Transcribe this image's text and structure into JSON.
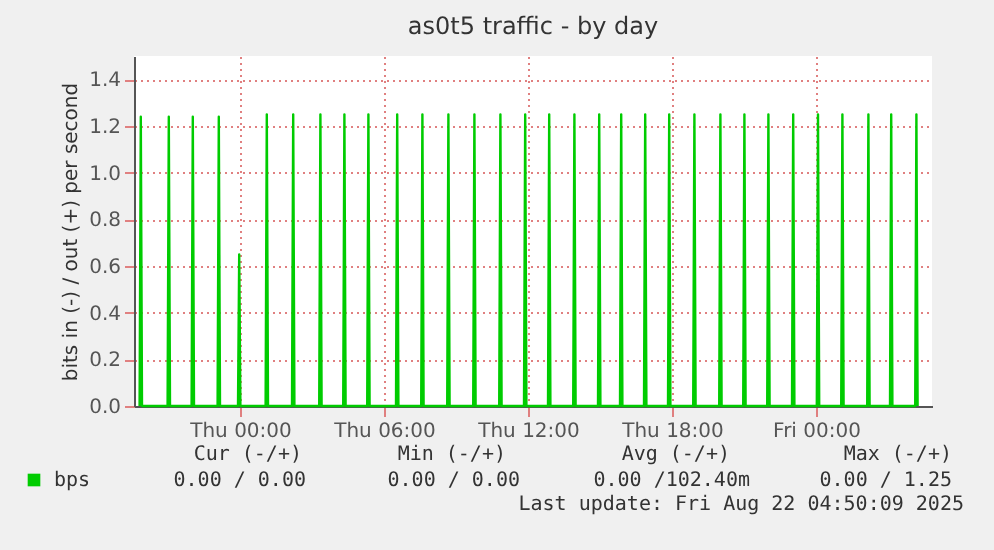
{
  "chart_data": {
    "type": "line",
    "title": "as0t5 traffic - by day",
    "ylabel": "bits in (-) / out (+) per second",
    "xlim": [
      "2025-08-20T19:35",
      "2025-08-22T04:50"
    ],
    "ylim": [
      0,
      1.5
    ],
    "xticks": [
      {
        "value": "2025-08-21T00:00",
        "label": "Thu 00:00"
      },
      {
        "value": "2025-08-21T06:00",
        "label": "Thu 06:00"
      },
      {
        "value": "2025-08-21T12:00",
        "label": "Thu 12:00"
      },
      {
        "value": "2025-08-21T18:00",
        "label": "Thu 18:00"
      },
      {
        "value": "2025-08-22T00:00",
        "label": "Fri 00:00"
      }
    ],
    "yticks": [
      {
        "value": 0,
        "label": "0.0"
      },
      {
        "value": 0.2,
        "label": "0.2"
      },
      {
        "value": 0.4,
        "label": "0.4"
      },
      {
        "value": 0.6,
        "label": "0.6"
      },
      {
        "value": 0.8,
        "label": "0.8"
      },
      {
        "value": 1.0,
        "label": "1.0"
      },
      {
        "value": 1.2,
        "label": "1.2"
      },
      {
        "value": 1.4,
        "label": "1.4"
      }
    ],
    "grid": true,
    "legend": "bottom left",
    "line_style": "solid",
    "marker": "none",
    "annotations": [
      "Cur (-/+)",
      "Min (-/+)",
      "Avg (-/+)",
      "Max (-/+)",
      "0.00 /   0.00",
      "0.00 /   0.00",
      "0.00 /102.40m",
      "0.00 /   1.25",
      "Last update: Fri Aug 22 04:50:09 2025"
    ],
    "series": [
      {
        "name": "bps",
        "color": "#00cc00",
        "x": [
          "2025-08-20T19:49",
          "2025-08-20T19:52",
          "2025-08-20T19:55",
          "2025-08-20T20:59",
          "2025-08-20T21:02",
          "2025-08-20T21:05",
          "2025-08-20T21:59",
          "2025-08-20T22:02",
          "2025-08-20T22:05",
          "2025-08-20T23:04",
          "2025-08-20T23:07",
          "2025-08-20T23:10",
          "2025-08-20T23:55",
          "2025-08-20T23:58",
          "2025-08-21T00:01",
          "2025-08-21T01:04",
          "2025-08-21T01:07",
          "2025-08-21T01:10",
          "2025-08-21T02:10",
          "2025-08-21T02:13",
          "2025-08-21T02:16",
          "2025-08-21T03:18",
          "2025-08-21T03:21",
          "2025-08-21T03:24",
          "2025-08-21T04:18",
          "2025-08-21T04:21",
          "2025-08-21T04:24",
          "2025-08-21T05:18",
          "2025-08-21T05:21",
          "2025-08-21T05:24",
          "2025-08-21T06:30",
          "2025-08-21T06:33",
          "2025-08-21T06:36",
          "2025-08-21T07:33",
          "2025-08-21T07:36",
          "2025-08-21T07:39",
          "2025-08-21T08:38",
          "2025-08-21T08:41",
          "2025-08-21T08:44",
          "2025-08-21T09:43",
          "2025-08-21T09:46",
          "2025-08-21T09:49",
          "2025-08-21T10:48",
          "2025-08-21T10:51",
          "2025-08-21T10:54",
          "2025-08-21T11:50",
          "2025-08-21T11:53",
          "2025-08-21T11:56",
          "2025-08-21T12:50",
          "2025-08-21T12:53",
          "2025-08-21T12:56",
          "2025-08-21T13:53",
          "2025-08-21T13:56",
          "2025-08-21T13:59",
          "2025-08-21T14:55",
          "2025-08-21T14:58",
          "2025-08-21T15:01",
          "2025-08-21T15:50",
          "2025-08-21T15:53",
          "2025-08-21T15:56",
          "2025-08-21T16:50",
          "2025-08-21T16:53",
          "2025-08-21T16:56",
          "2025-08-21T17:50",
          "2025-08-21T17:53",
          "2025-08-21T17:56",
          "2025-08-21T18:53",
          "2025-08-21T18:56",
          "2025-08-21T18:59",
          "2025-08-21T19:58",
          "2025-08-21T20:01",
          "2025-08-21T20:04",
          "2025-08-21T20:58",
          "2025-08-21T21:01",
          "2025-08-21T21:04",
          "2025-08-21T21:58",
          "2025-08-21T22:01",
          "2025-08-21T22:04",
          "2025-08-21T23:00",
          "2025-08-21T23:03",
          "2025-08-21T23:06",
          "2025-08-22T00:02",
          "2025-08-22T00:05",
          "2025-08-22T00:08",
          "2025-08-22T01:03",
          "2025-08-22T01:06",
          "2025-08-22T01:09",
          "2025-08-22T02:08",
          "2025-08-22T02:11",
          "2025-08-22T02:14",
          "2025-08-22T03:05",
          "2025-08-22T03:08",
          "2025-08-22T03:11",
          "2025-08-22T04:08",
          "2025-08-22T04:11",
          "2025-08-22T04:14"
        ],
        "values": [
          0,
          1.24,
          0,
          0,
          1.24,
          0,
          0,
          1.24,
          0,
          0,
          1.24,
          0,
          0,
          0.65,
          0,
          0,
          1.25,
          0,
          0,
          1.25,
          0,
          0,
          1.25,
          0,
          0,
          1.25,
          0,
          0,
          1.25,
          0,
          0,
          1.25,
          0,
          0,
          1.25,
          0,
          0,
          1.25,
          0,
          0,
          1.25,
          0,
          0,
          1.25,
          0,
          0,
          1.25,
          0,
          0,
          1.25,
          0,
          0,
          1.25,
          0,
          0,
          1.25,
          0,
          0,
          1.25,
          0,
          0,
          1.25,
          0,
          0,
          1.25,
          0,
          0,
          1.25,
          0,
          0,
          1.25,
          0,
          0,
          1.25,
          0,
          0,
          1.25,
          0,
          0,
          1.25,
          0,
          0,
          1.25,
          0,
          0,
          1.25,
          0,
          0,
          1.25,
          0,
          0,
          1.25,
          0,
          0,
          1.25,
          0
        ]
      }
    ]
  }
}
